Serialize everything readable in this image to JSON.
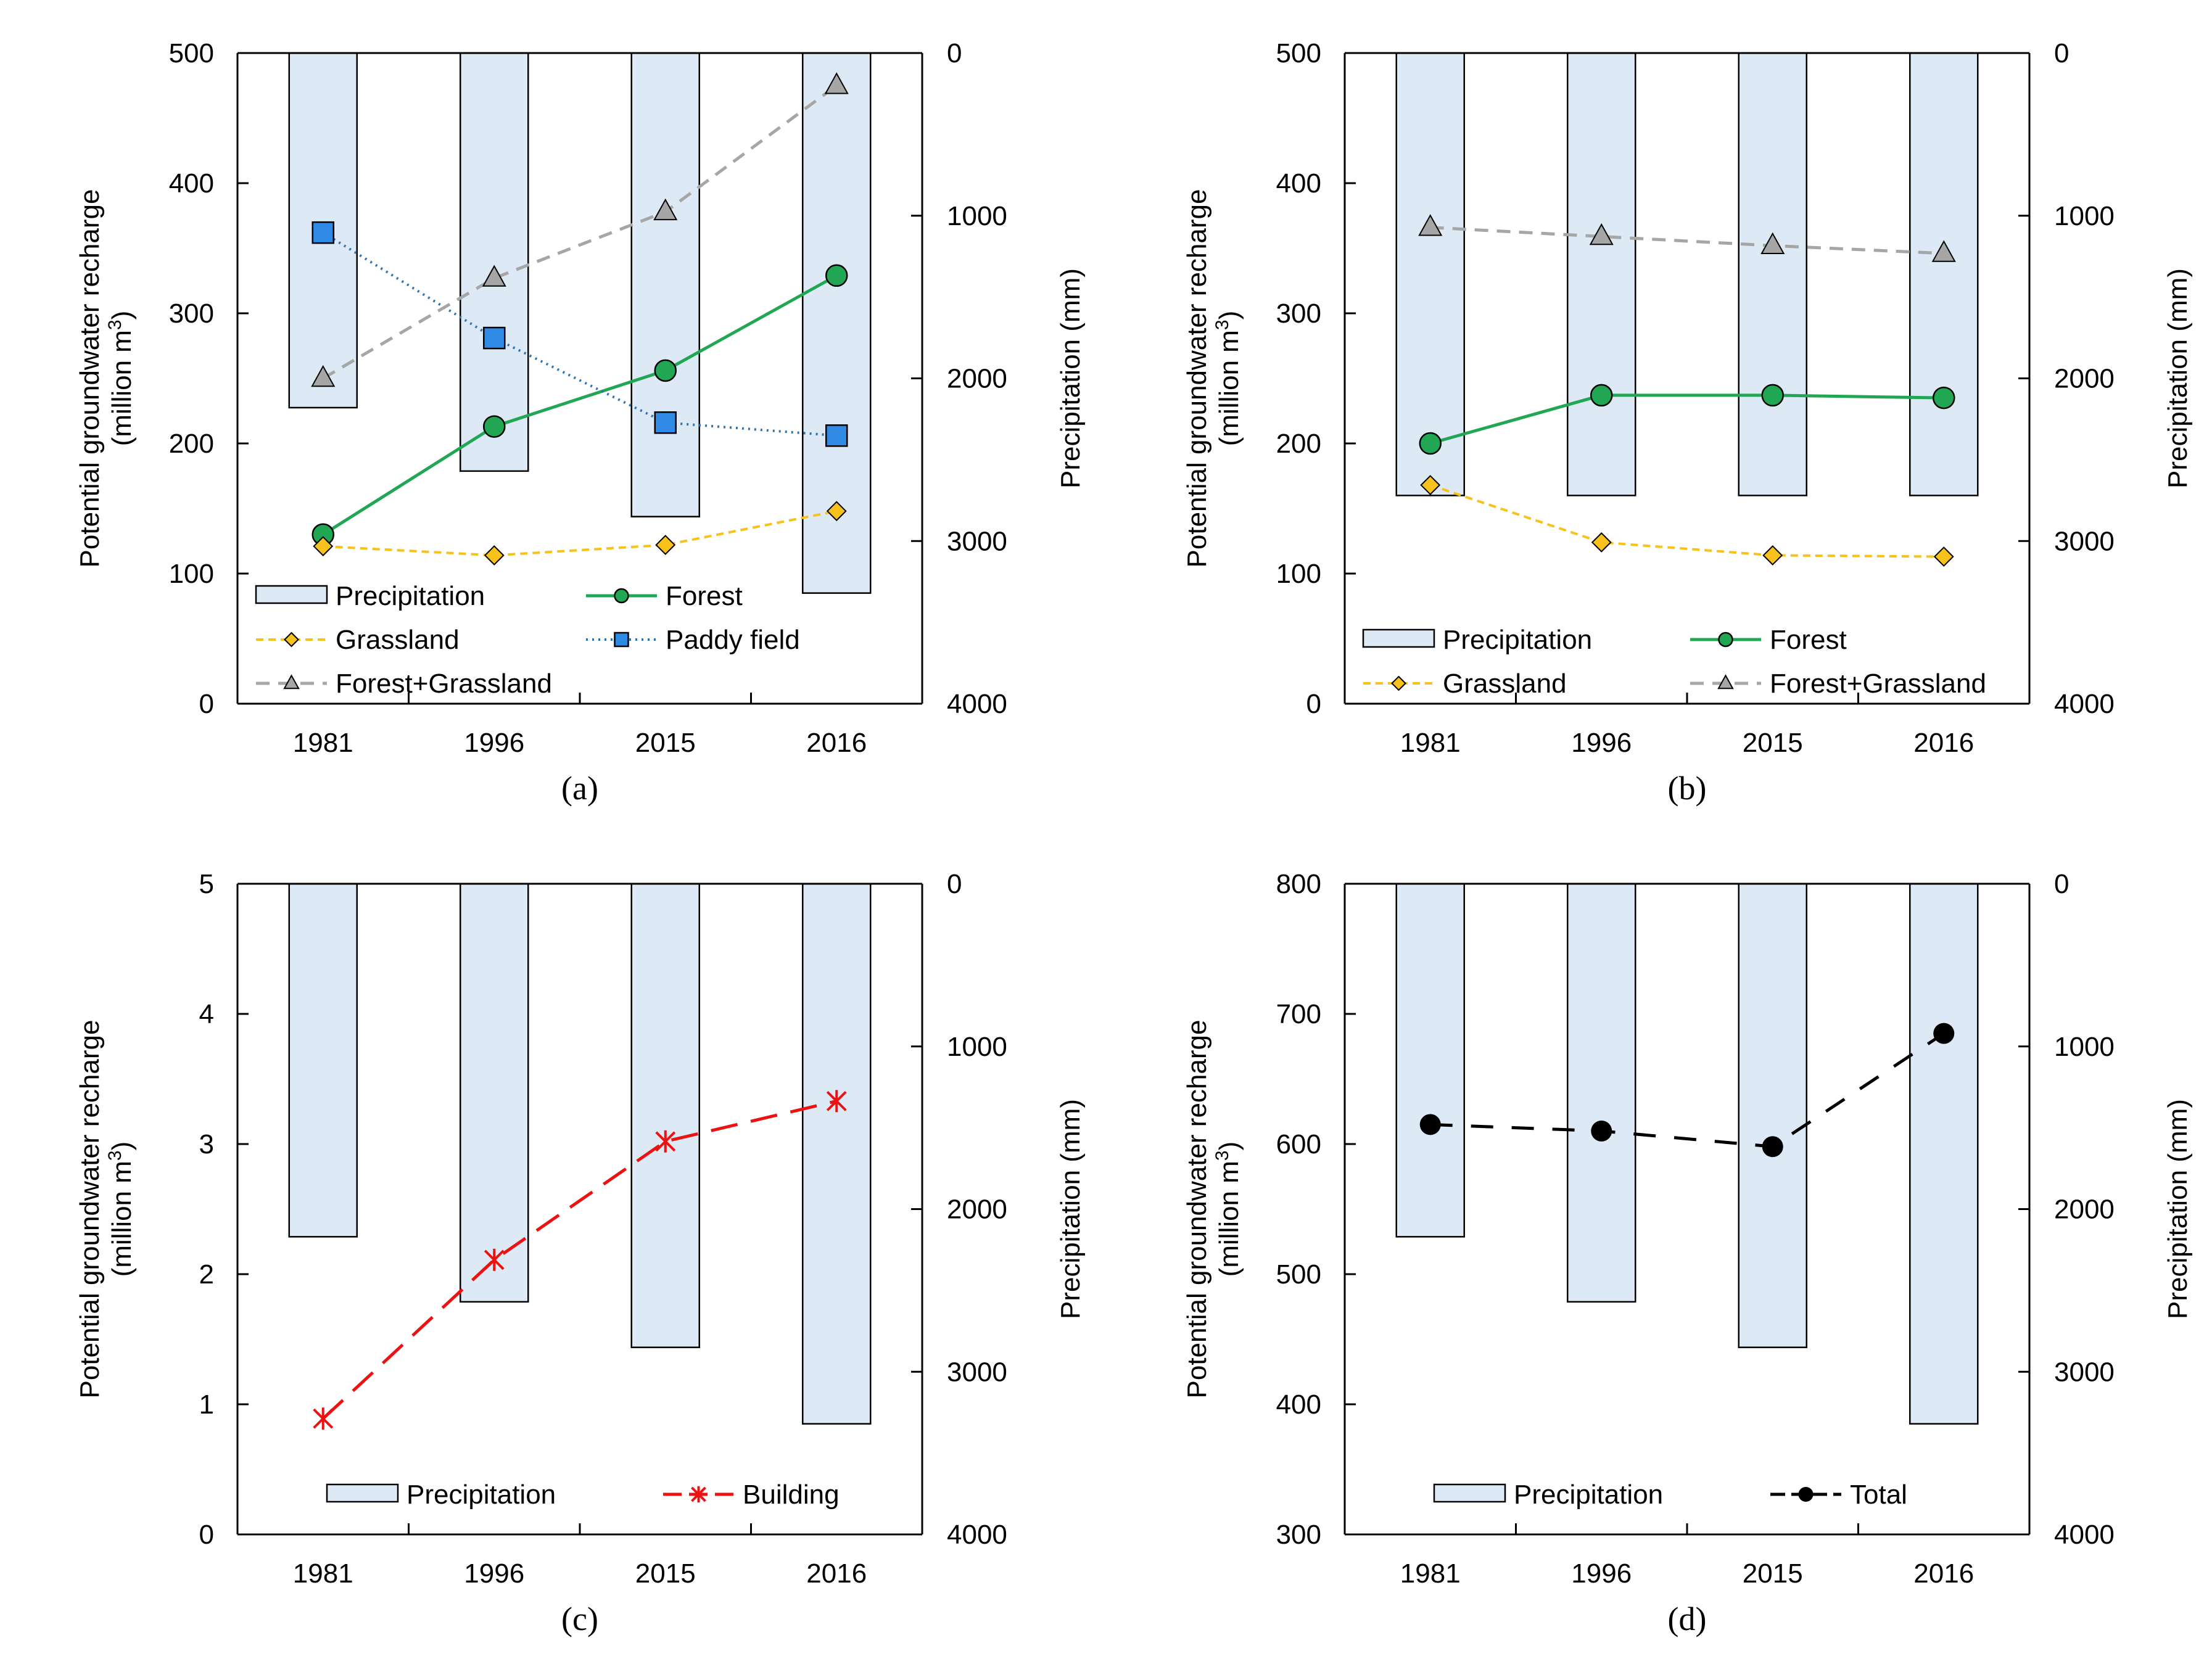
{
  "figure": {
    "colors": {
      "precip_fill": "#dde9f5",
      "precip_stroke": "#000000",
      "forest": "#21a654",
      "grassland": "#f8c21d",
      "paddy": "#2e75b6",
      "paddy_marker": "#2f8ae6",
      "forest_grassland": "#a6a6a6",
      "building": "#ee1111",
      "total": "#000000"
    }
  },
  "chart_data": [
    {
      "type": "bar+line",
      "label": "(a)",
      "categories": [
        "1981",
        "1996",
        "2015",
        "2016"
      ],
      "ylabel_line1": "Potential groundwater recharge",
      "ylabel_line2_pre": "(million m",
      "ylabel_line2_sup": "3",
      "ylabel_line2_post": ")",
      "y2label": "Precipitation (mm)",
      "ylim": [
        0,
        500
      ],
      "yticks": [
        "0",
        "100",
        "200",
        "300",
        "400",
        "500"
      ],
      "y2lim": [
        0,
        4000
      ],
      "y2ticks": [
        "0",
        "1000",
        "2000",
        "3000",
        "4000"
      ],
      "precipitation": [
        2180,
        2570,
        2850,
        3320
      ],
      "series": [
        {
          "name": "Forest",
          "key": "forest",
          "values": [
            130,
            213,
            256,
            329
          ]
        },
        {
          "name": "Grassland",
          "key": "grassland",
          "values": [
            121,
            114,
            122,
            148
          ]
        },
        {
          "name": "Paddy field",
          "key": "paddy",
          "values": [
            362,
            281,
            216,
            206
          ]
        },
        {
          "name": "Forest+Grassland",
          "key": "forest_grassland",
          "values": [
            250,
            327,
            378,
            475
          ]
        }
      ],
      "legend": [
        "Precipitation",
        "Forest",
        "Grassland",
        "Paddy field",
        "Forest+Grassland"
      ]
    },
    {
      "type": "bar+line",
      "label": "(b)",
      "categories": [
        "1981",
        "1996",
        "2015",
        "2016"
      ],
      "ylabel_line1": "Potential groundwater recharge",
      "ylabel_line2_pre": "(million m",
      "ylabel_line2_sup": "3",
      "ylabel_line2_post": ")",
      "y2label": "Precipitation (mm)",
      "ylim": [
        0,
        500
      ],
      "yticks": [
        "0",
        "100",
        "200",
        "300",
        "400",
        "500"
      ],
      "y2lim": [
        0,
        4000
      ],
      "y2ticks": [
        "0",
        "1000",
        "2000",
        "3000",
        "4000"
      ],
      "precipitation": [
        2720,
        2720,
        2720,
        2720
      ],
      "series": [
        {
          "name": "Forest",
          "key": "forest",
          "values": [
            200,
            237,
            237,
            235
          ]
        },
        {
          "name": "Grassland",
          "key": "grassland",
          "values": [
            168,
            124,
            114,
            113
          ]
        },
        {
          "name": "Forest+Grassland",
          "key": "forest_grassland",
          "values": [
            366,
            359,
            352,
            346
          ]
        }
      ],
      "legend": [
        "Precipitation",
        "Forest",
        "Grassland",
        "Forest+Grassland"
      ]
    },
    {
      "type": "bar+line",
      "label": "(c)",
      "categories": [
        "1981",
        "1996",
        "2015",
        "2016"
      ],
      "ylabel_line1": "Potential groundwater recharge",
      "ylabel_line2_pre": "(million m",
      "ylabel_line2_sup": "3",
      "ylabel_line2_post": ")",
      "y2label": "Precipitation (mm)",
      "ylim": [
        0,
        5
      ],
      "yticks": [
        "0",
        "1",
        "2",
        "3",
        "4",
        "5"
      ],
      "y2lim": [
        0,
        4000
      ],
      "y2ticks": [
        "0",
        "1000",
        "2000",
        "3000",
        "4000"
      ],
      "precipitation": [
        2170,
        2570,
        2850,
        3320
      ],
      "series": [
        {
          "name": "Building",
          "key": "building",
          "values": [
            0.89,
            2.11,
            3.02,
            3.33
          ]
        }
      ],
      "legend": [
        "Precipitation",
        "Building"
      ]
    },
    {
      "type": "bar+line",
      "label": "(d)",
      "categories": [
        "1981",
        "1996",
        "2015",
        "2016"
      ],
      "ylabel_line1": "Potential groundwater recharge",
      "ylabel_line2_pre": "(million m",
      "ylabel_line2_sup": "3",
      "ylabel_line2_post": ")",
      "y2label": "Precipitation (mm)",
      "ylim": [
        300,
        800
      ],
      "yticks": [
        "300",
        "400",
        "500",
        "600",
        "700",
        "800"
      ],
      "y2lim": [
        0,
        4000
      ],
      "y2ticks": [
        "0",
        "1000",
        "2000",
        "3000",
        "4000"
      ],
      "precipitation": [
        2170,
        2570,
        2850,
        3320
      ],
      "series": [
        {
          "name": "Total",
          "key": "total",
          "values": [
            615,
            610,
            598,
            685
          ]
        }
      ],
      "legend": [
        "Precipitation",
        "Total"
      ]
    }
  ]
}
